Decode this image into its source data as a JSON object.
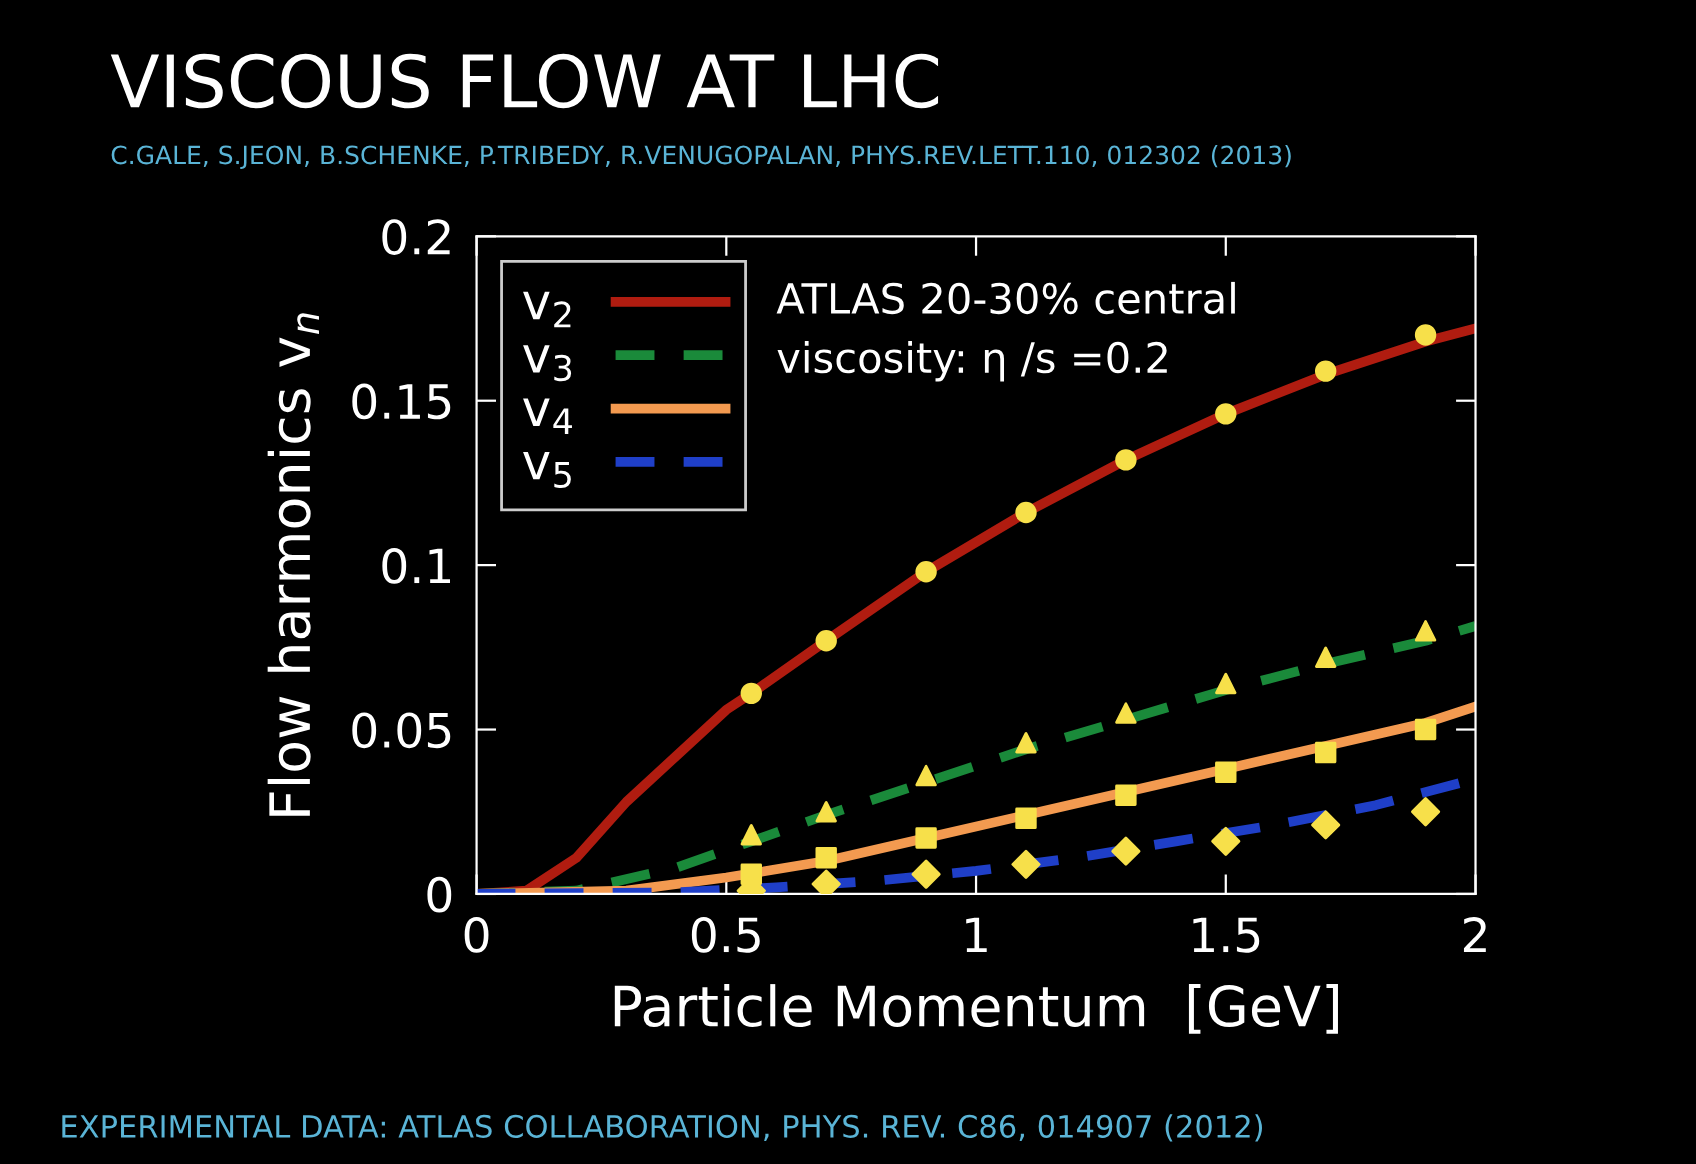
{
  "chart_data": {
    "type": "line",
    "title": "VISCOUS FLOW AT LHC",
    "subtitle": "C.GALE, S.JEON, B.SCHENKE, P.TRIBEDY, R.VENUGOPALAN, PHYS.REV.LETT.110, 012302 (2013)",
    "xlabel": "Particle Momentum  [GeV]",
    "ylabel": "Flow harmonics v$_{n}$",
    "annotations": [
      "ATLAS 20-30% central",
      "viscosity: η /s =0.2",
      "EXPERIMENTAL DATA: ATLAS COLLABORATION, PHYS. REV. C86, 014907 (2012)"
    ],
    "xlim": [
      0,
      2
    ],
    "xticks": [
      0,
      0.5,
      1,
      1.5,
      2
    ],
    "ylim": [
      0,
      0.2
    ],
    "yticks": [
      0,
      0.05,
      0.1,
      0.15,
      0.2
    ],
    "grid": false,
    "legend": "top left",
    "series": [
      {
        "name": "v$_{2}$",
        "line_style": "solid",
        "color": "#b01c10",
        "x": [
          0,
          0.1,
          0.2,
          0.3,
          0.4,
          0.5,
          0.55,
          0.7,
          0.9,
          1.1,
          1.3,
          1.5,
          1.7,
          1.9,
          2.0
        ],
        "values": [
          0,
          0.001,
          0.011,
          0.028,
          0.042,
          0.056,
          0.061,
          0.077,
          0.098,
          0.116,
          0.132,
          0.146,
          0.158,
          0.168,
          0.172
        ]
      },
      {
        "name": "v$_{3}$",
        "line_style": "dashed",
        "color": "#1a8a3a",
        "x": [
          0,
          0.2,
          0.4,
          0.55,
          0.7,
          0.9,
          1.1,
          1.3,
          1.5,
          1.7,
          1.9,
          2.0
        ],
        "values": [
          0,
          0.001,
          0.008,
          0.016,
          0.024,
          0.034,
          0.044,
          0.053,
          0.062,
          0.07,
          0.077,
          0.0815
        ]
      },
      {
        "name": "v$_{4}$",
        "line_style": "solid",
        "color": "#f39a50",
        "x": [
          0,
          0.3,
          0.5,
          0.7,
          0.9,
          1.1,
          1.3,
          1.5,
          1.7,
          1.9,
          2.0
        ],
        "values": [
          0,
          0.001,
          0.005,
          0.01,
          0.017,
          0.024,
          0.031,
          0.038,
          0.045,
          0.052,
          0.057
        ]
      },
      {
        "name": "v$_{5}$",
        "line_style": "dashed",
        "color": "#1f3fc8",
        "x": [
          0,
          0.4,
          0.6,
          0.8,
          1.0,
          1.2,
          1.4,
          1.6,
          1.8,
          2.0
        ],
        "values": [
          0,
          0.0005,
          0.002,
          0.004,
          0.007,
          0.011,
          0.016,
          0.021,
          0.027,
          0.035
        ]
      },
      {
        "type": "scatter",
        "marker": "circle",
        "color": "#f7e04a",
        "x": [
          0.55,
          0.7,
          0.9,
          1.1,
          1.3,
          1.5,
          1.7,
          1.9
        ],
        "values": [
          0.061,
          0.077,
          0.098,
          0.116,
          0.132,
          0.146,
          0.159,
          0.17
        ]
      },
      {
        "type": "scatter",
        "marker": "triangle",
        "color": "#f7e04a",
        "x": [
          0.55,
          0.7,
          0.9,
          1.1,
          1.3,
          1.5,
          1.7,
          1.9
        ],
        "values": [
          0.018,
          0.025,
          0.036,
          0.046,
          0.055,
          0.064,
          0.072,
          0.08
        ]
      },
      {
        "type": "scatter",
        "marker": "square",
        "color": "#f7e04a",
        "x": [
          0.55,
          0.7,
          0.9,
          1.1,
          1.3,
          1.5,
          1.7,
          1.9
        ],
        "values": [
          0.006,
          0.011,
          0.017,
          0.023,
          0.03,
          0.037,
          0.043,
          0.05
        ]
      },
      {
        "type": "scatter",
        "marker": "diamond",
        "color": "#f7e04a",
        "x": [
          0.55,
          0.7,
          0.9,
          1.1,
          1.3,
          1.5,
          1.7,
          1.9
        ],
        "values": [
          0.001,
          0.003,
          0.006,
          0.009,
          0.013,
          0.016,
          0.021,
          0.025
        ]
      }
    ]
  }
}
